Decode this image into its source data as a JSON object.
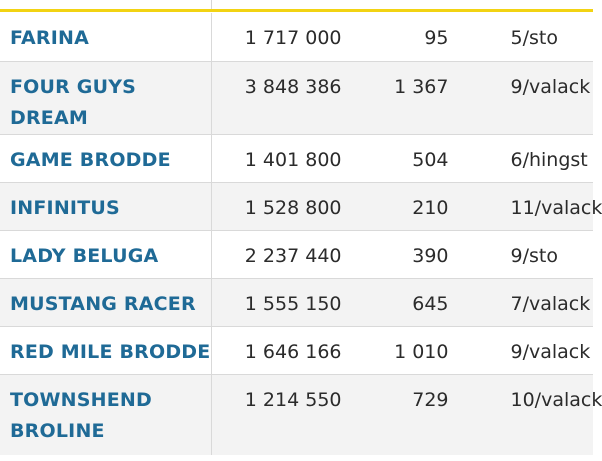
{
  "rows": [
    {
      "name": "FARINA",
      "earnings": "1 717 000",
      "starts": "95",
      "age_sex": "5/sto"
    },
    {
      "name": "FOUR GUYS DREAM",
      "earnings": "3 848 386",
      "starts": "1 367",
      "age_sex": "9/valack"
    },
    {
      "name": "GAME BRODDE",
      "earnings": "1 401 800",
      "starts": "504",
      "age_sex": "6/hingst"
    },
    {
      "name": "INFINITUS",
      "earnings": "1 528 800",
      "starts": "210",
      "age_sex": "11/valack"
    },
    {
      "name": "LADY BELUGA",
      "earnings": "2 237 440",
      "starts": "390",
      "age_sex": "9/sto"
    },
    {
      "name": "MUSTANG RACER",
      "earnings": "1 555 150",
      "starts": "645",
      "age_sex": "7/valack"
    },
    {
      "name": "RED MILE BRODDE",
      "earnings": "1 646 166",
      "starts": "1 010",
      "age_sex": "9/valack"
    },
    {
      "name": "TOWNSHEND BROLINE",
      "earnings": "1 214 550",
      "starts": "729",
      "age_sex": "10/valack"
    }
  ],
  "colors": {
    "name_text": "#1f6a96",
    "accent_bar": "#f2d313",
    "stripe": "#f3f3f3"
  }
}
